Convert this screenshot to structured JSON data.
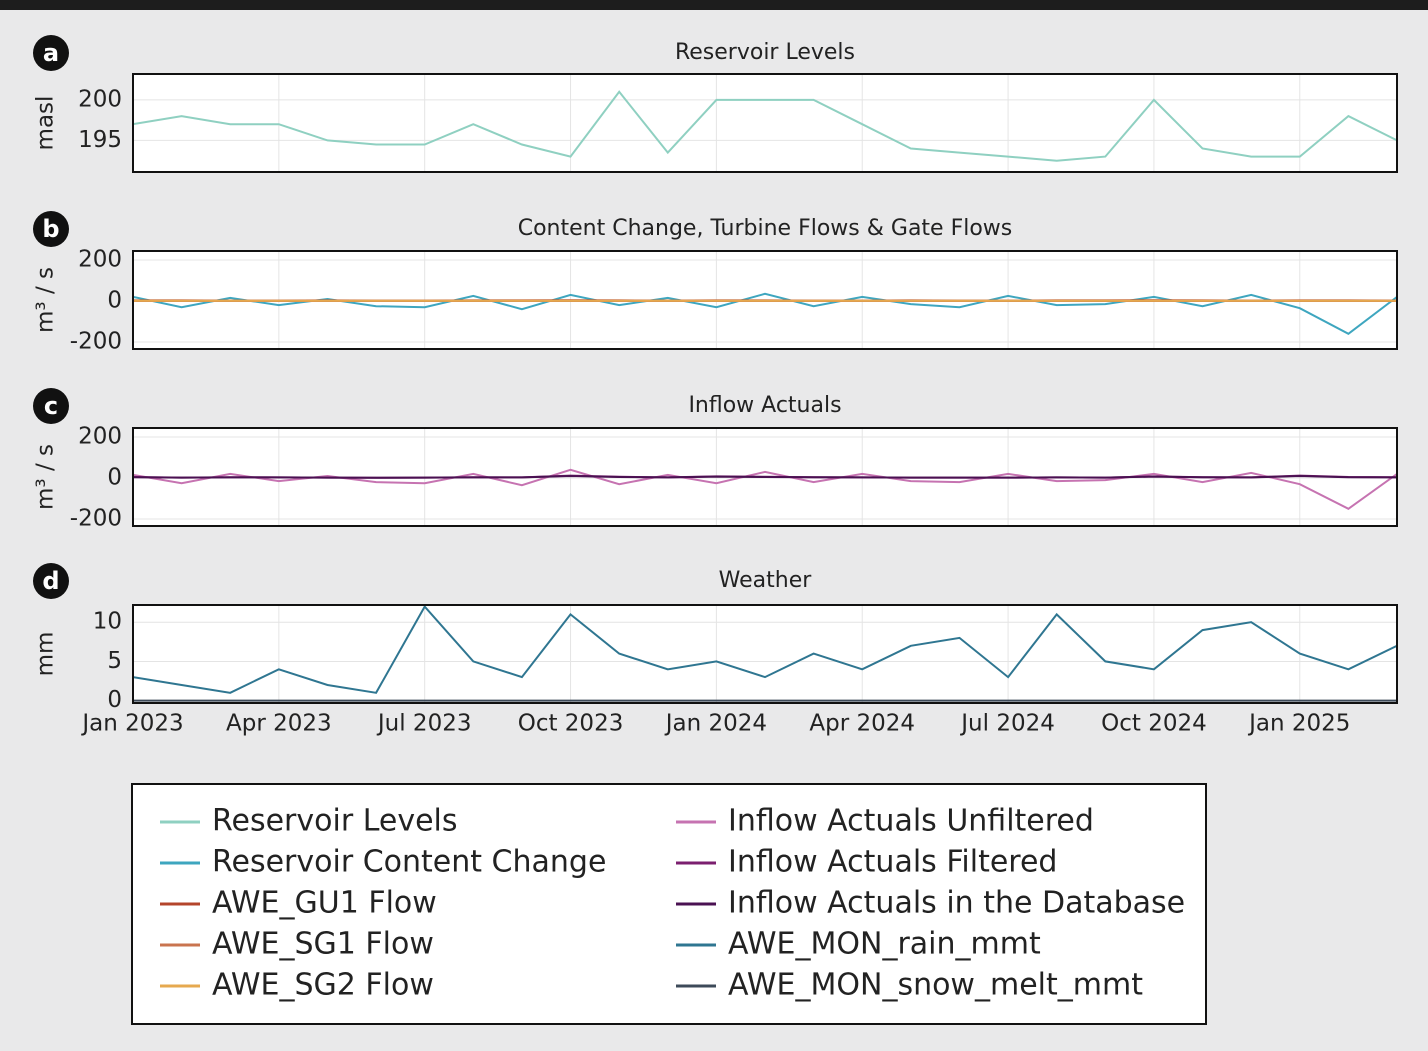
{
  "chart_data": [
    {
      "type": "line",
      "panel_label": "a",
      "title": "Reservoir Levels",
      "ylabel": "masl",
      "x": [
        "2023-01",
        "2023-02",
        "2023-03",
        "2023-04",
        "2023-05",
        "2023-06",
        "2023-07",
        "2023-08",
        "2023-09",
        "2023-10",
        "2023-11",
        "2023-12",
        "2024-01",
        "2024-02",
        "2024-03",
        "2024-04",
        "2024-05",
        "2024-06",
        "2024-07",
        "2024-08",
        "2024-09",
        "2024-10",
        "2024-11",
        "2024-12",
        "2025-01",
        "2025-02",
        "2025-03"
      ],
      "series": [
        {
          "name": "Reservoir Levels",
          "color": "#8fd0c1",
          "values": [
            197,
            198,
            197,
            197,
            195,
            194.5,
            194.5,
            197,
            194.5,
            193,
            201,
            193.5,
            200,
            200,
            200,
            197,
            194,
            193.5,
            193,
            192.5,
            193,
            200,
            194,
            193,
            193,
            198,
            195
          ]
        }
      ],
      "ylim": [
        191.1,
        203.2
      ],
      "yticks": [
        195,
        200
      ],
      "grid": true
    },
    {
      "type": "line",
      "panel_label": "b",
      "title": "Content Change, Turbine Flows & Gate Flows",
      "ylabel": "m³ / s",
      "x": [
        "2023-01",
        "2023-02",
        "2023-03",
        "2023-04",
        "2023-05",
        "2023-06",
        "2023-07",
        "2023-08",
        "2023-09",
        "2023-10",
        "2023-11",
        "2023-12",
        "2024-01",
        "2024-02",
        "2024-03",
        "2024-04",
        "2024-05",
        "2024-06",
        "2024-07",
        "2024-08",
        "2024-09",
        "2024-10",
        "2024-11",
        "2024-12",
        "2025-01",
        "2025-02",
        "2025-03"
      ],
      "series": [
        {
          "name": "Reservoir Content Change",
          "color": "#3ea6bf",
          "values": [
            20,
            -30,
            15,
            -20,
            10,
            -25,
            -30,
            25,
            -40,
            30,
            -20,
            15,
            -30,
            35,
            -25,
            20,
            -15,
            -30,
            25,
            -20,
            -15,
            20,
            -25,
            30,
            -35,
            -160,
            20
          ]
        },
        {
          "name": "AWE_GU1 Flow",
          "color": "#b4452b",
          "values": [
            3,
            3,
            2,
            2,
            3,
            2,
            2,
            3,
            3,
            4,
            3,
            2,
            3,
            3,
            2,
            2,
            3,
            2,
            2,
            3,
            3,
            4,
            3,
            2,
            3,
            3,
            2
          ]
        },
        {
          "name": "AWE_SG1 Flow",
          "color": "#c9744f",
          "values": [
            0,
            0,
            0,
            0,
            0,
            0,
            0,
            0,
            0,
            0,
            0,
            0,
            0,
            0,
            0,
            0,
            0,
            0,
            0,
            0,
            0,
            0,
            0,
            0,
            0,
            0,
            0
          ]
        },
        {
          "name": "AWE_SG2 Flow",
          "color": "#e6a94f",
          "values": [
            1,
            1,
            1,
            1,
            1,
            1,
            1,
            1,
            1,
            1,
            1,
            1,
            1,
            1,
            1,
            1,
            1,
            1,
            1,
            1,
            1,
            1,
            1,
            1,
            1,
            1,
            1
          ]
        }
      ],
      "ylim": [
        -234,
        244
      ],
      "yticks": [
        -200,
        0,
        200
      ],
      "grid": true
    },
    {
      "type": "line",
      "panel_label": "c",
      "title": "Inflow Actuals",
      "ylabel": "m³ / s",
      "x": [
        "2023-01",
        "2023-02",
        "2023-03",
        "2023-04",
        "2023-05",
        "2023-06",
        "2023-07",
        "2023-08",
        "2023-09",
        "2023-10",
        "2023-11",
        "2023-12",
        "2024-01",
        "2024-02",
        "2024-03",
        "2024-04",
        "2024-05",
        "2024-06",
        "2024-07",
        "2024-08",
        "2024-09",
        "2024-10",
        "2024-11",
        "2024-12",
        "2025-01",
        "2025-02",
        "2025-03"
      ],
      "series": [
        {
          "name": "Inflow Actuals Unfiltered",
          "color": "#c673b1",
          "values": [
            15,
            -25,
            20,
            -15,
            10,
            -20,
            -25,
            20,
            -35,
            40,
            -30,
            15,
            -25,
            30,
            -20,
            20,
            -15,
            -20,
            20,
            -15,
            -10,
            20,
            -20,
            25,
            -30,
            -150,
            20
          ]
        },
        {
          "name": "Inflow Actuals Filtered",
          "color": "#7b1f6f",
          "values": [
            5,
            2,
            4,
            3,
            2,
            1,
            2,
            4,
            3,
            12,
            6,
            3,
            8,
            6,
            4,
            3,
            2,
            2,
            2,
            3,
            2,
            8,
            4,
            3,
            12,
            5,
            4
          ]
        },
        {
          "name": "Inflow Actuals in the Database",
          "color": "#4a1152",
          "values": [
            4,
            2,
            3,
            3,
            2,
            1,
            2,
            3,
            3,
            10,
            5,
            3,
            7,
            5,
            4,
            3,
            2,
            2,
            2,
            3,
            2,
            7,
            4,
            3,
            10,
            4,
            3
          ]
        }
      ],
      "ylim": [
        -234,
        244
      ],
      "yticks": [
        -200,
        0,
        200
      ],
      "grid": true
    },
    {
      "type": "line",
      "panel_label": "d",
      "title": "Weather",
      "ylabel": "mm",
      "x": [
        "2023-01",
        "2023-02",
        "2023-03",
        "2023-04",
        "2023-05",
        "2023-06",
        "2023-07",
        "2023-08",
        "2023-09",
        "2023-10",
        "2023-11",
        "2023-12",
        "2024-01",
        "2024-02",
        "2024-03",
        "2024-04",
        "2024-05",
        "2024-06",
        "2024-07",
        "2024-08",
        "2024-09",
        "2024-10",
        "2024-11",
        "2024-12",
        "2025-01",
        "2025-02",
        "2025-03"
      ],
      "series": [
        {
          "name": "AWE_MON_rain_mmt",
          "color": "#2f7691",
          "values": [
            3,
            2,
            1,
            4,
            2,
            1,
            12,
            5,
            3,
            11,
            6,
            4,
            5,
            3,
            6,
            4,
            7,
            8,
            3,
            11,
            5,
            4,
            9,
            10,
            6,
            4,
            7
          ]
        },
        {
          "name": "AWE_MON_snow_melt_mmt",
          "color": "#3d4a59",
          "values": [
            0,
            0,
            0,
            0,
            0,
            0,
            0,
            0,
            0,
            0,
            0,
            0,
            0,
            0,
            0,
            0,
            0,
            0,
            0,
            0,
            0,
            0,
            0,
            0,
            0,
            0,
            0
          ]
        }
      ],
      "ylim": [
        -0.3,
        12.2
      ],
      "yticks": [
        0,
        5,
        10
      ],
      "grid": true,
      "xlim": [
        "2023-01",
        "2025-03"
      ],
      "xticks": [
        {
          "value": "2023-01",
          "label": "Jan 2023"
        },
        {
          "value": "2023-04",
          "label": "Apr 2023"
        },
        {
          "value": "2023-07",
          "label": "Jul 2023"
        },
        {
          "value": "2023-10",
          "label": "Oct 2023"
        },
        {
          "value": "2024-01",
          "label": "Jan 2024"
        },
        {
          "value": "2024-04",
          "label": "Apr 2024"
        },
        {
          "value": "2024-07",
          "label": "Jul 2024"
        },
        {
          "value": "2024-10",
          "label": "Oct 2024"
        },
        {
          "value": "2025-01",
          "label": "Jan 2025"
        }
      ]
    }
  ]
}
